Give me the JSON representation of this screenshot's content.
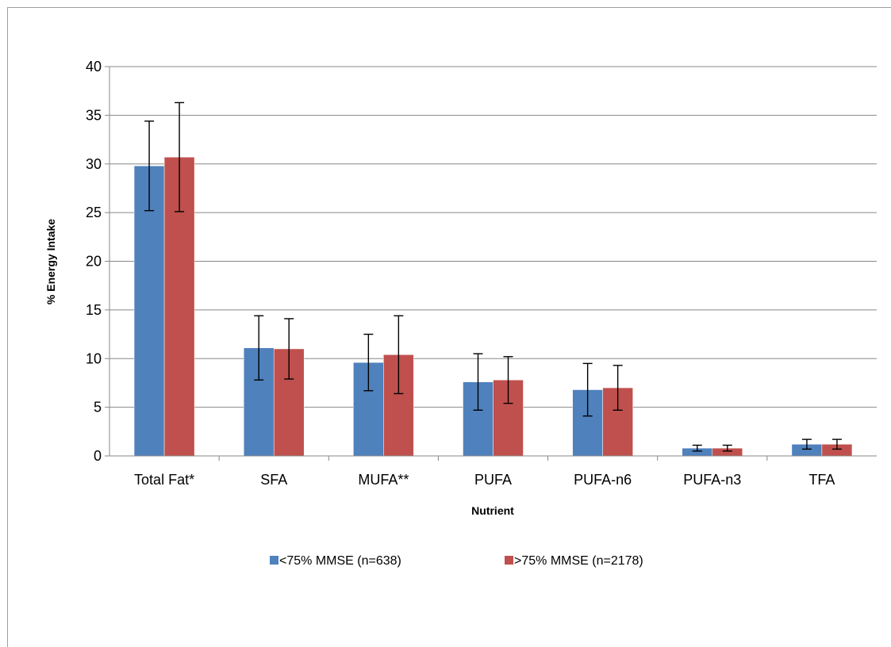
{
  "chart_data": {
    "type": "bar",
    "title": "",
    "xlabel": "Nutrient",
    "ylabel": "% Energy Intake",
    "ylim": [
      0,
      40
    ],
    "yticks": [
      0,
      5,
      10,
      15,
      20,
      25,
      30,
      35,
      40
    ],
    "grid": true,
    "legend_position": "bottom",
    "categories": [
      "Total Fat*",
      "SFA",
      "MUFA**",
      "PUFA",
      "PUFA-n6",
      "PUFA-n3",
      "TFA"
    ],
    "series": [
      {
        "name": "<75% MMSE (n=638)",
        "color": "#4f81bd",
        "values": [
          29.8,
          11.1,
          9.6,
          7.6,
          6.8,
          0.8,
          1.2
        ],
        "error": [
          4.6,
          3.3,
          2.9,
          2.9,
          2.7,
          0.3,
          0.5
        ]
      },
      {
        "name": ">75% MMSE (n=2178)",
        "color": "#c0504d",
        "values": [
          30.7,
          11.0,
          10.4,
          7.8,
          7.0,
          0.8,
          1.2
        ],
        "error": [
          5.6,
          3.1,
          4.0,
          2.4,
          2.3,
          0.3,
          0.5
        ]
      }
    ]
  }
}
